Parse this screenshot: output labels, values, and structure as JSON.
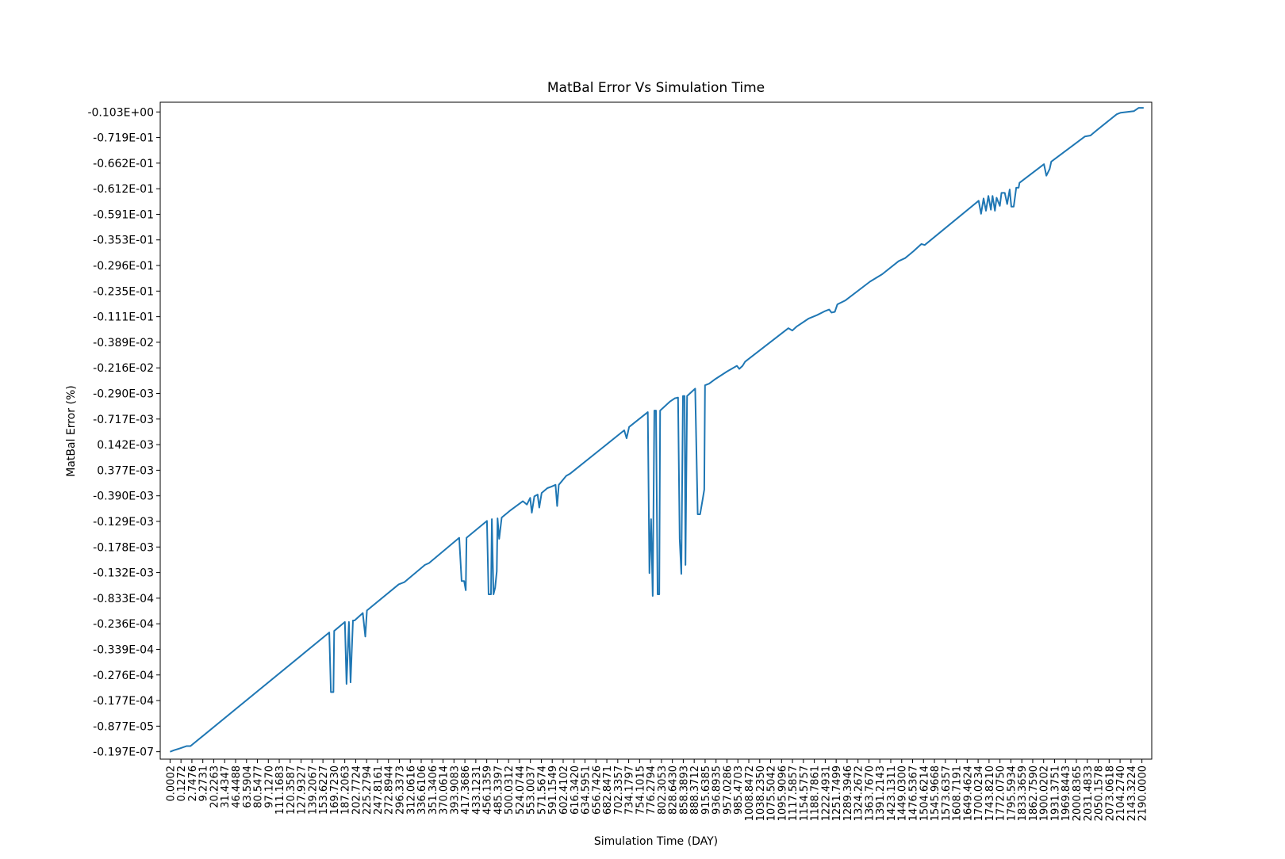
{
  "chart_data": {
    "type": "line",
    "title": "MatBal Error Vs Simulation Time",
    "xlabel": "Simulation Time (DAY)",
    "ylabel": "MatBal Error (%)",
    "xlim": [
      -0.9,
      89.9
    ],
    "ylim": [
      -0.29,
      25.38
    ],
    "xticks": [
      {
        "value": 0,
        "label": "0.0002"
      },
      {
        "value": 1,
        "label": "0.1272"
      },
      {
        "value": 2,
        "label": "2.7476"
      },
      {
        "value": 3,
        "label": "9.2731"
      },
      {
        "value": 4,
        "label": "20.2263"
      },
      {
        "value": 5,
        "label": "31.4347"
      },
      {
        "value": 6,
        "label": "46.4488"
      },
      {
        "value": 7,
        "label": "63.5904"
      },
      {
        "value": 8,
        "label": "80.5477"
      },
      {
        "value": 9,
        "label": "97.1270"
      },
      {
        "value": 10,
        "label": "111.1683"
      },
      {
        "value": 11,
        "label": "120.3587"
      },
      {
        "value": 12,
        "label": "127.9327"
      },
      {
        "value": 13,
        "label": "139.2067"
      },
      {
        "value": 14,
        "label": "153.6227"
      },
      {
        "value": 15,
        "label": "169.7230"
      },
      {
        "value": 16,
        "label": "187.2063"
      },
      {
        "value": 17,
        "label": "202.7724"
      },
      {
        "value": 18,
        "label": "225.2794"
      },
      {
        "value": 19,
        "label": "247.8161"
      },
      {
        "value": 20,
        "label": "272.8944"
      },
      {
        "value": 21,
        "label": "296.3373"
      },
      {
        "value": 22,
        "label": "312.0616"
      },
      {
        "value": 23,
        "label": "336.6106"
      },
      {
        "value": 24,
        "label": "351.3406"
      },
      {
        "value": 25,
        "label": "370.0614"
      },
      {
        "value": 26,
        "label": "393.9083"
      },
      {
        "value": 27,
        "label": "417.3686"
      },
      {
        "value": 28,
        "label": "433.1231"
      },
      {
        "value": 29,
        "label": "456.1359"
      },
      {
        "value": 30,
        "label": "485.3397"
      },
      {
        "value": 31,
        "label": "500.0312"
      },
      {
        "value": 32,
        "label": "524.0744"
      },
      {
        "value": 33,
        "label": "553.0037"
      },
      {
        "value": 34,
        "label": "571.5674"
      },
      {
        "value": 35,
        "label": "591.1549"
      },
      {
        "value": 36,
        "label": "602.4102"
      },
      {
        "value": 37,
        "label": "616.3420"
      },
      {
        "value": 38,
        "label": "634.5951"
      },
      {
        "value": 39,
        "label": "656.7426"
      },
      {
        "value": 40,
        "label": "682.8471"
      },
      {
        "value": 41,
        "label": "702.3357"
      },
      {
        "value": 42,
        "label": "734.1797"
      },
      {
        "value": 43,
        "label": "754.1015"
      },
      {
        "value": 44,
        "label": "776.2794"
      },
      {
        "value": 45,
        "label": "802.3053"
      },
      {
        "value": 46,
        "label": "828.6430"
      },
      {
        "value": 47,
        "label": "858.3893"
      },
      {
        "value": 48,
        "label": "888.3712"
      },
      {
        "value": 49,
        "label": "915.6385"
      },
      {
        "value": 50,
        "label": "936.8935"
      },
      {
        "value": 51,
        "label": "957.0286"
      },
      {
        "value": 52,
        "label": "985.4703"
      },
      {
        "value": 53,
        "label": "1008.8472"
      },
      {
        "value": 54,
        "label": "1038.2350"
      },
      {
        "value": 55,
        "label": "1075.5042"
      },
      {
        "value": 56,
        "label": "1095.9096"
      },
      {
        "value": 57,
        "label": "1117.5857"
      },
      {
        "value": 58,
        "label": "1154.5757"
      },
      {
        "value": 59,
        "label": "1188.7861"
      },
      {
        "value": 60,
        "label": "1222.4931"
      },
      {
        "value": 61,
        "label": "1251.7499"
      },
      {
        "value": 62,
        "label": "1289.3946"
      },
      {
        "value": 63,
        "label": "1324.2672"
      },
      {
        "value": 64,
        "label": "1363.7670"
      },
      {
        "value": 65,
        "label": "1391.2143"
      },
      {
        "value": 66,
        "label": "1423.1311"
      },
      {
        "value": 67,
        "label": "1449.0300"
      },
      {
        "value": 68,
        "label": "1476.5367"
      },
      {
        "value": 69,
        "label": "1504.6214"
      },
      {
        "value": 70,
        "label": "1545.9668"
      },
      {
        "value": 71,
        "label": "1573.6357"
      },
      {
        "value": 72,
        "label": "1608.7191"
      },
      {
        "value": 73,
        "label": "1649.4624"
      },
      {
        "value": 74,
        "label": "1700.0234"
      },
      {
        "value": 75,
        "label": "1743.8210"
      },
      {
        "value": 76,
        "label": "1772.0750"
      },
      {
        "value": 77,
        "label": "1795.5934"
      },
      {
        "value": 78,
        "label": "1833.3659"
      },
      {
        "value": 79,
        "label": "1862.7590"
      },
      {
        "value": 80,
        "label": "1900.0202"
      },
      {
        "value": 81,
        "label": "1931.3751"
      },
      {
        "value": 82,
        "label": "1969.8443"
      },
      {
        "value": 83,
        "label": "2000.8365"
      },
      {
        "value": 84,
        "label": "2031.4833"
      },
      {
        "value": 85,
        "label": "2050.1578"
      },
      {
        "value": 86,
        "label": "2073.0618"
      },
      {
        "value": 87,
        "label": "2104.2740"
      },
      {
        "value": 88,
        "label": "2143.3224"
      },
      {
        "value": 89,
        "label": "2190.0000"
      }
    ],
    "yticks": [
      {
        "value": 0,
        "label": "-0.197E-07"
      },
      {
        "value": 1,
        "label": "-0.877E-05"
      },
      {
        "value": 2,
        "label": "-0.177E-04"
      },
      {
        "value": 3,
        "label": "-0.276E-04"
      },
      {
        "value": 4,
        "label": "-0.339E-04"
      },
      {
        "value": 5,
        "label": "-0.236E-04"
      },
      {
        "value": 6,
        "label": "-0.833E-04"
      },
      {
        "value": 7,
        "label": "-0.132E-03"
      },
      {
        "value": 8,
        "label": "-0.178E-03"
      },
      {
        "value": 9,
        "label": "-0.129E-03"
      },
      {
        "value": 10,
        "label": "-0.390E-03"
      },
      {
        "value": 11,
        "label": "0.377E-03"
      },
      {
        "value": 12,
        "label": "0.142E-03"
      },
      {
        "value": 13,
        "label": "-0.717E-03"
      },
      {
        "value": 14,
        "label": "-0.290E-03"
      },
      {
        "value": 15,
        "label": "-0.216E-02"
      },
      {
        "value": 16,
        "label": "-0.389E-02"
      },
      {
        "value": 17,
        "label": "-0.111E-01"
      },
      {
        "value": 18,
        "label": "-0.235E-01"
      },
      {
        "value": 19,
        "label": "-0.296E-01"
      },
      {
        "value": 20,
        "label": "-0.353E-01"
      },
      {
        "value": 21,
        "label": "-0.591E-01"
      },
      {
        "value": 22,
        "label": "-0.612E-01"
      },
      {
        "value": 23,
        "label": "-0.662E-01"
      },
      {
        "value": 24,
        "label": "-0.719E-01"
      },
      {
        "value": 25,
        "label": "-0.103E+00"
      }
    ],
    "color": "#1f77b4",
    "x": [
      0,
      0.37,
      0.9,
      1.5,
      1.87,
      14.58,
      14.73,
      14.96,
      15.03,
      16.01,
      16.16,
      16.38,
      16.53,
      16.75,
      16.9,
      17.65,
      17.88,
      18.03,
      20.94,
      21.47,
      23.34,
      23.71,
      26.48,
      26.7,
      26.93,
      27.08,
      27.15,
      29.02,
      29.17,
      29.39,
      29.47,
      29.62,
      29.77,
      29.92,
      29.99,
      30.14,
      30.37,
      30.82,
      31.19,
      32.31,
      32.68,
      32.98,
      33.13,
      33.36,
      33.66,
      33.81,
      34.03,
      34.55,
      34.93,
      35.3,
      35.45,
      35.6,
      36.28,
      36.65,
      41.59,
      41.81,
      42.04,
      43.75,
      43.9,
      44.05,
      44.2,
      44.35,
      44.5,
      44.65,
      44.8,
      44.88,
      45.77,
      46.22,
      46.52,
      46.67,
      46.82,
      46.97,
      47.12,
      47.2,
      47.35,
      48.09,
      48.32,
      48.54,
      48.77,
      48.92,
      48.99,
      49.36,
      49.96,
      51.01,
      51.91,
      52.13,
      52.43,
      52.66,
      56.62,
      56.99,
      57.37,
      58.49,
      59.24,
      59.99,
      60.36,
      60.58,
      60.88,
      61.11,
      61.86,
      64.1,
      65.22,
      66.72,
      67.32,
      68.06,
      68.81,
      69.11,
      74.05,
      74.27,
      74.5,
      74.72,
      74.94,
      75.17,
      75.32,
      75.54,
      75.69,
      75.99,
      76.14,
      76.44,
      76.66,
      76.89,
      77.04,
      77.26,
      77.49,
      77.71,
      77.79,
      80.03,
      80.25,
      80.55,
      80.7,
      83.77,
      84.29,
      84.82,
      86.69,
      87.06,
      87.66,
      88.26,
      88.71,
      89.16
    ],
    "values": [
      0,
      0.06,
      0.13,
      0.22,
      0.22,
      4.66,
      2.33,
      2.33,
      4.72,
      5.07,
      2.65,
      5.07,
      2.71,
      5.13,
      5.13,
      5.42,
      4.5,
      5.52,
      6.54,
      6.63,
      7.3,
      7.37,
      8.36,
      6.67,
      6.67,
      6.31,
      8.36,
      9.02,
      6.15,
      6.15,
      9.09,
      6.15,
      6.41,
      7.05,
      9.12,
      8.32,
      9.15,
      9.31,
      9.44,
      9.79,
      9.66,
      9.92,
      9.34,
      9.98,
      10.05,
      9.54,
      10.11,
      10.3,
      10.36,
      10.43,
      9.6,
      10.43,
      10.78,
      10.87,
      12.56,
      12.25,
      12.69,
      13.27,
      6.98,
      9.09,
      6.09,
      13.33,
      13.33,
      6.15,
      6.15,
      13.33,
      13.68,
      13.81,
      13.84,
      8.32,
      6.95,
      13.9,
      13.9,
      7.3,
      13.9,
      14.19,
      9.28,
      9.28,
      9.85,
      10.24,
      14.32,
      14.38,
      14.57,
      14.86,
      15.08,
      14.96,
      15.08,
      15.24,
      16.55,
      16.46,
      16.61,
      16.93,
      17.06,
      17.22,
      17.28,
      17.16,
      17.19,
      17.48,
      17.64,
      18.37,
      18.66,
      19.17,
      19.29,
      19.55,
      19.84,
      19.8,
      21.53,
      21.02,
      21.62,
      21.14,
      21.72,
      21.18,
      21.72,
      21.14,
      21.65,
      21.33,
      21.84,
      21.84,
      21.4,
      21.97,
      21.3,
      21.3,
      22.04,
      22.04,
      22.23,
      22.96,
      22.51,
      22.77,
      23.06,
      24.04,
      24.08,
      24.27,
      24.91,
      24.97,
      25.0,
      25.03,
      25.16,
      25.16
    ]
  }
}
